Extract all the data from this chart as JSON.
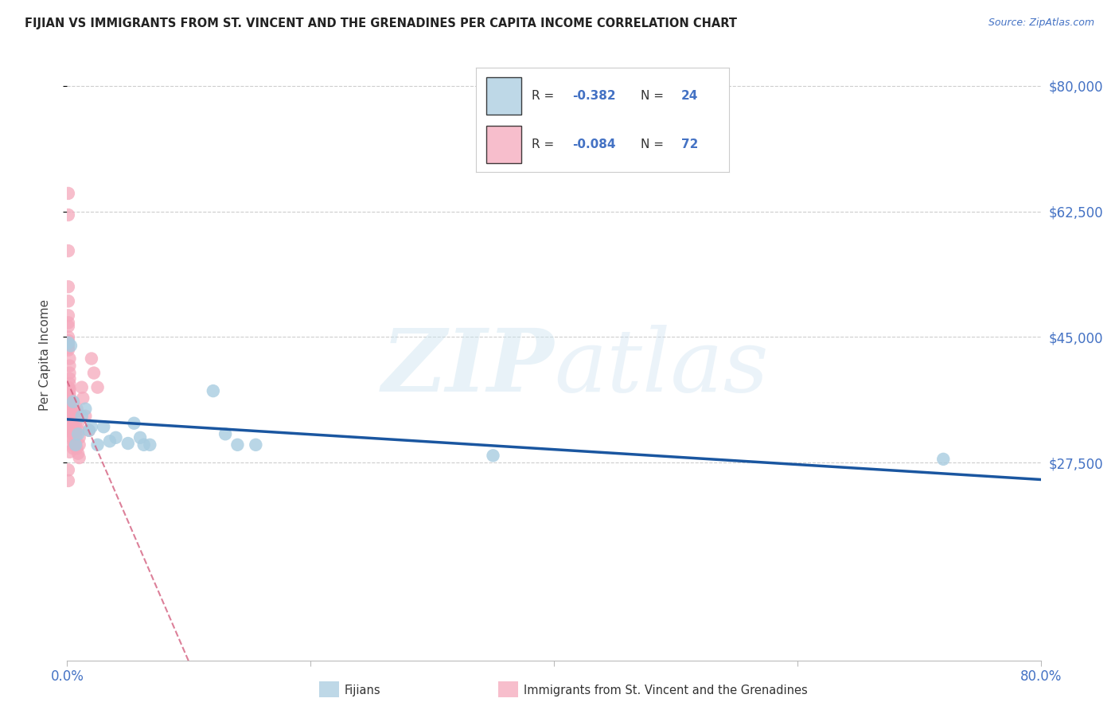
{
  "title": "FIJIAN VS IMMIGRANTS FROM ST. VINCENT AND THE GRENADINES PER CAPITA INCOME CORRELATION CHART",
  "source": "Source: ZipAtlas.com",
  "ylabel": "Per Capita Income",
  "xlim": [
    0.0,
    0.8
  ],
  "ylim": [
    0,
    85000
  ],
  "yticks": [
    27500,
    45000,
    62500,
    80000
  ],
  "ytick_labels": [
    "$27,500",
    "$45,000",
    "$62,500",
    "$80,000"
  ],
  "xtick_positions": [
    0.0,
    0.2,
    0.4,
    0.6,
    0.8
  ],
  "xtick_labels": [
    "0.0%",
    "",
    "",
    "",
    "80.0%"
  ],
  "background_color": "#ffffff",
  "grid_color": "#c8c8c8",
  "watermark_text": "ZIPatlas",
  "blue_color": "#a8cce0",
  "pink_color": "#f5a8bc",
  "trend_blue_color": "#1a56a0",
  "trend_pink_color": "#d46080",
  "label_color": "#4472c4",
  "fijian_label": "Fijians",
  "vincent_label": "Immigrants from St. Vincent and the Grenadines",
  "blue_points": [
    [
      0.001,
      44200
    ],
    [
      0.003,
      43800
    ],
    [
      0.007,
      30000
    ],
    [
      0.009,
      31500
    ],
    [
      0.012,
      34000
    ],
    [
      0.015,
      35000
    ],
    [
      0.018,
      32000
    ],
    [
      0.02,
      32500
    ],
    [
      0.03,
      32500
    ],
    [
      0.035,
      30500
    ],
    [
      0.04,
      31000
    ],
    [
      0.055,
      33000
    ],
    [
      0.06,
      31000
    ],
    [
      0.063,
      30000
    ],
    [
      0.12,
      37500
    ],
    [
      0.13,
      31500
    ],
    [
      0.14,
      30000
    ],
    [
      0.155,
      30000
    ],
    [
      0.35,
      28500
    ],
    [
      0.72,
      28000
    ],
    [
      0.025,
      30000
    ],
    [
      0.05,
      30200
    ],
    [
      0.068,
      30000
    ],
    [
      0.005,
      36000
    ]
  ],
  "pink_points": [
    [
      0.001,
      65000
    ],
    [
      0.001,
      62000
    ],
    [
      0.001,
      57000
    ],
    [
      0.001,
      52000
    ],
    [
      0.001,
      50000
    ],
    [
      0.001,
      48000
    ],
    [
      0.001,
      46500
    ],
    [
      0.001,
      45000
    ],
    [
      0.001,
      44000
    ],
    [
      0.001,
      43200
    ],
    [
      0.002,
      42000
    ],
    [
      0.002,
      41000
    ],
    [
      0.002,
      40000
    ],
    [
      0.002,
      39200
    ],
    [
      0.002,
      38500
    ],
    [
      0.002,
      37800
    ],
    [
      0.002,
      37000
    ],
    [
      0.002,
      36500
    ],
    [
      0.003,
      36000
    ],
    [
      0.003,
      35500
    ],
    [
      0.003,
      35000
    ],
    [
      0.003,
      34500
    ],
    [
      0.003,
      34000
    ],
    [
      0.003,
      33500
    ],
    [
      0.004,
      33000
    ],
    [
      0.004,
      32500
    ],
    [
      0.004,
      32000
    ],
    [
      0.004,
      31500
    ],
    [
      0.004,
      31000
    ],
    [
      0.005,
      30500
    ],
    [
      0.005,
      30000
    ],
    [
      0.005,
      29500
    ],
    [
      0.006,
      35000
    ],
    [
      0.006,
      34000
    ],
    [
      0.007,
      33000
    ],
    [
      0.007,
      32000
    ],
    [
      0.008,
      35000
    ],
    [
      0.008,
      34000
    ],
    [
      0.009,
      33000
    ],
    [
      0.009,
      32000
    ],
    [
      0.01,
      31000
    ],
    [
      0.01,
      30000
    ],
    [
      0.012,
      38000
    ],
    [
      0.013,
      36500
    ],
    [
      0.015,
      34000
    ],
    [
      0.018,
      32000
    ],
    [
      0.02,
      42000
    ],
    [
      0.022,
      40000
    ],
    [
      0.025,
      38000
    ],
    [
      0.001,
      47000
    ],
    [
      0.001,
      43500
    ],
    [
      0.001,
      26500
    ],
    [
      0.001,
      25000
    ],
    [
      0.002,
      37500
    ],
    [
      0.002,
      36000
    ],
    [
      0.003,
      35800
    ],
    [
      0.003,
      34800
    ],
    [
      0.004,
      33800
    ],
    [
      0.005,
      31800
    ],
    [
      0.006,
      33200
    ],
    [
      0.006,
      32200
    ],
    [
      0.007,
      31200
    ],
    [
      0.007,
      30200
    ],
    [
      0.008,
      29500
    ],
    [
      0.009,
      28800
    ],
    [
      0.01,
      28200
    ],
    [
      0.001,
      44500
    ],
    [
      0.001,
      38000
    ],
    [
      0.001,
      37000
    ],
    [
      0.002,
      29000
    ],
    [
      0.001,
      32000
    ]
  ]
}
